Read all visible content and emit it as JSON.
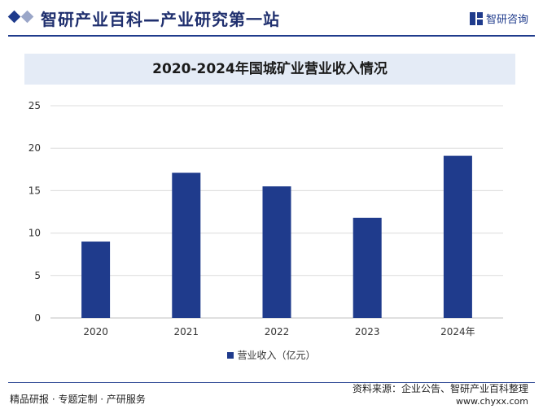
{
  "header": {
    "site_title": "智研产业百科—产业研究第一站",
    "logo_text": "智研咨询",
    "brand_color": "#1f3b8c"
  },
  "footer": {
    "left": "精品研报 · 专题定制 · 产研服务",
    "source": "资料来源：企业公告、智研产业百科整理",
    "url": "www.chyxx.com"
  },
  "chart_data": {
    "type": "bar",
    "title": "2020-2024年国城矿业营业收入情况",
    "categories": [
      "2020",
      "2021",
      "2022",
      "2023",
      "2024年"
    ],
    "series": [
      {
        "name": "营业收入（亿元）",
        "values": [
          9.0,
          17.1,
          15.5,
          11.8,
          19.1
        ],
        "color": "#1f3b8c"
      }
    ],
    "ylim": [
      0,
      25
    ],
    "yticks": [
      "0",
      "5",
      "10",
      "15",
      "20",
      "25"
    ],
    "grid": true,
    "legend_position": "bottom"
  }
}
